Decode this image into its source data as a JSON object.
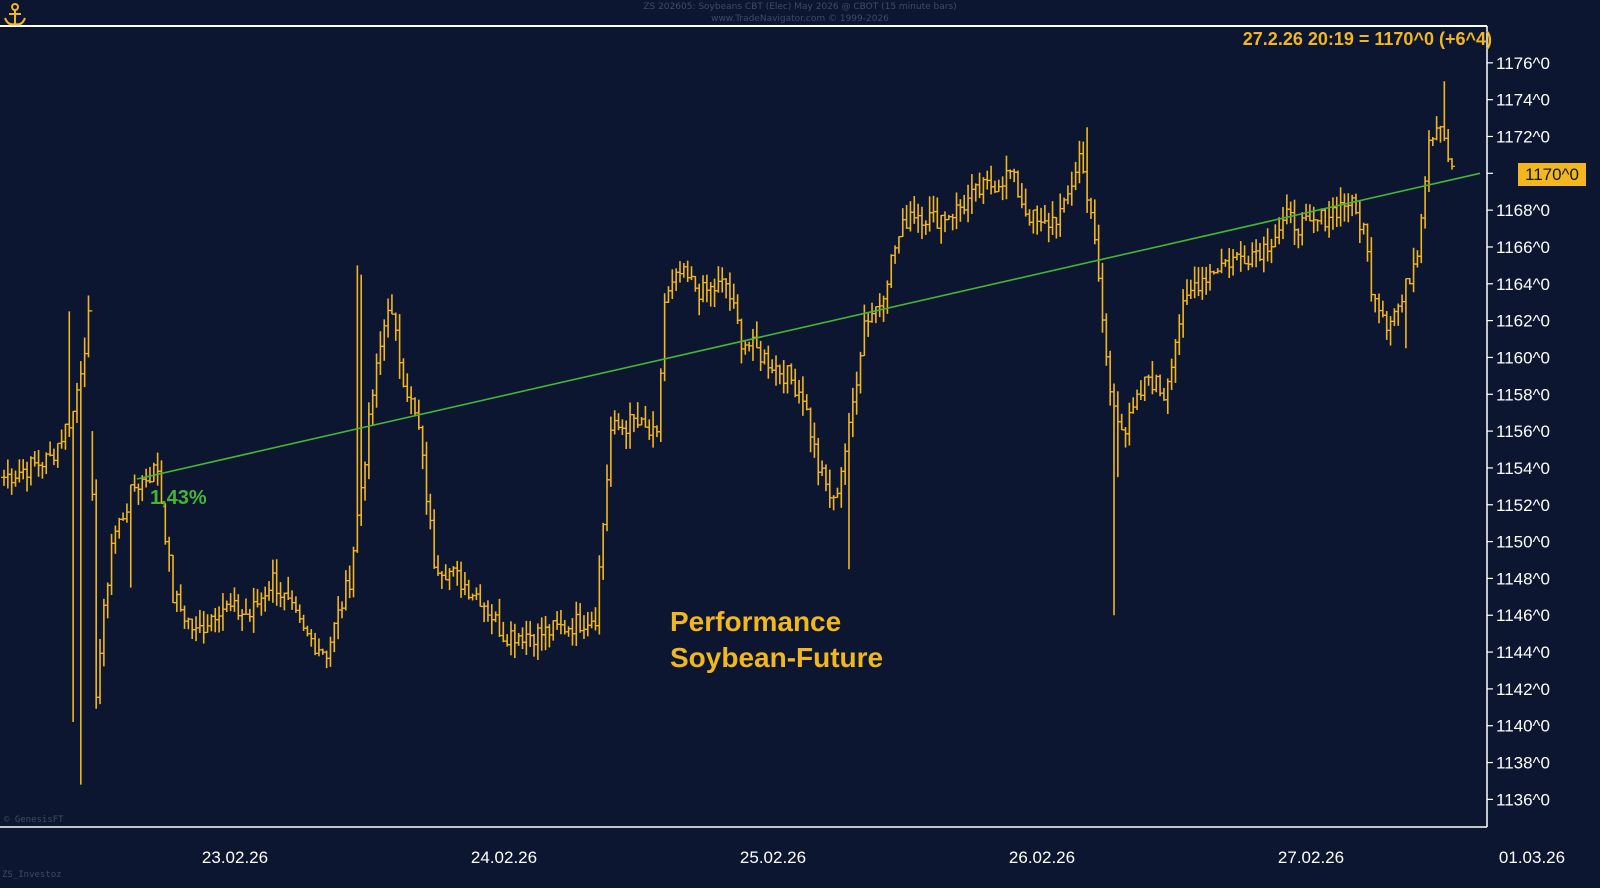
{
  "header": {
    "line1": "ZS 202605:  Soybeans CBT (Elec) May 2026 @ CBOT  (15 minute bars)",
    "line2": "www.TradeNavigator.com © 1999-2026"
  },
  "last_quote": "27.2.26 20:19 = 1170^0 (+6^4)",
  "price_tag": "1170^0",
  "performance_label": "1,43%",
  "annotation": [
    "Performance",
    "Soybean-Future"
  ],
  "footer": {
    "left_inner": "© GenesisFT",
    "left_outer": "ZS_Investoz"
  },
  "colors": {
    "background": "#0d1630",
    "bars": "#f2b71e",
    "trendline": "#45b636",
    "axis_text": "#ffffff",
    "frame": "#ffffff"
  },
  "icons": {
    "logo": "anchor-icon"
  },
  "chart_data": {
    "type": "ohlc",
    "title": "Performance Soybean-Future",
    "interval": "15 minute bars",
    "xlabel": "",
    "ylabel": "",
    "ylim": [
      1134.5,
      1178
    ],
    "y_ticks": [
      1136,
      1138,
      1140,
      1142,
      1144,
      1146,
      1148,
      1150,
      1152,
      1154,
      1156,
      1158,
      1160,
      1162,
      1164,
      1166,
      1168,
      1170,
      1172,
      1174,
      1176
    ],
    "y_tick_labels": [
      "1136^0",
      "1138^0",
      "1140^0",
      "1142^0",
      "1144^0",
      "1146^0",
      "1148^0",
      "1150^0",
      "1152^0",
      "1154^0",
      "1156^0",
      "1158^0",
      "1160^0",
      "1162^0",
      "1164^0",
      "1166^0",
      "1168^0",
      "1170^0",
      "1172^0",
      "1174^0",
      "1176^0"
    ],
    "x_ticks": [
      "23.02.26",
      "24.02.26",
      "25.02.26",
      "26.02.26",
      "27.02.26",
      "01.03.26"
    ],
    "grid": false,
    "legend": "none",
    "anchors": [
      {
        "bar": 0,
        "p": 1153.5
      },
      {
        "bar": 12,
        "p": 1154.5
      },
      {
        "bar": 18,
        "p": 1157
      },
      {
        "bar": 22,
        "p": 1162
      },
      {
        "bar": 24,
        "p": 1142
      },
      {
        "bar": 28,
        "p": 1150
      },
      {
        "bar": 34,
        "p": 1153
      },
      {
        "bar": 40,
        "p": 1154
      },
      {
        "bar": 44,
        "p": 1147
      },
      {
        "bar": 50,
        "p": 1145
      },
      {
        "bar": 56,
        "p": 1146.5
      },
      {
        "bar": 64,
        "p": 1146
      },
      {
        "bar": 70,
        "p": 1148
      },
      {
        "bar": 78,
        "p": 1145
      },
      {
        "bar": 84,
        "p": 1144
      },
      {
        "bar": 90,
        "p": 1148
      },
      {
        "bar": 96,
        "p": 1158
      },
      {
        "bar": 100,
        "p": 1163
      },
      {
        "bar": 104,
        "p": 1159
      },
      {
        "bar": 108,
        "p": 1156
      },
      {
        "bar": 112,
        "p": 1149
      },
      {
        "bar": 118,
        "p": 1148
      },
      {
        "bar": 124,
        "p": 1147
      },
      {
        "bar": 130,
        "p": 1145
      },
      {
        "bar": 140,
        "p": 1145
      },
      {
        "bar": 148,
        "p": 1145.5
      },
      {
        "bar": 154,
        "p": 1146
      },
      {
        "bar": 158,
        "p": 1156
      },
      {
        "bar": 164,
        "p": 1156.5
      },
      {
        "bar": 170,
        "p": 1155.5
      },
      {
        "bar": 172,
        "p": 1163
      },
      {
        "bar": 176,
        "p": 1164.5
      },
      {
        "bar": 182,
        "p": 1163.5
      },
      {
        "bar": 188,
        "p": 1164
      },
      {
        "bar": 192,
        "p": 1161
      },
      {
        "bar": 198,
        "p": 1160
      },
      {
        "bar": 204,
        "p": 1159
      },
      {
        "bar": 208,
        "p": 1158
      },
      {
        "bar": 212,
        "p": 1154
      },
      {
        "bar": 216,
        "p": 1152
      },
      {
        "bar": 220,
        "p": 1156
      },
      {
        "bar": 224,
        "p": 1162
      },
      {
        "bar": 228,
        "p": 1163
      },
      {
        "bar": 232,
        "p": 1166
      },
      {
        "bar": 236,
        "p": 1168
      },
      {
        "bar": 242,
        "p": 1167.5
      },
      {
        "bar": 248,
        "p": 1168
      },
      {
        "bar": 254,
        "p": 1169
      },
      {
        "bar": 258,
        "p": 1169.5
      },
      {
        "bar": 262,
        "p": 1170
      },
      {
        "bar": 266,
        "p": 1168
      },
      {
        "bar": 270,
        "p": 1167
      },
      {
        "bar": 276,
        "p": 1168
      },
      {
        "bar": 280,
        "p": 1171
      },
      {
        "bar": 283,
        "p": 1168
      },
      {
        "bar": 286,
        "p": 1162
      },
      {
        "bar": 288,
        "p": 1158
      },
      {
        "bar": 292,
        "p": 1156
      },
      {
        "bar": 298,
        "p": 1159
      },
      {
        "bar": 302,
        "p": 1158
      },
      {
        "bar": 306,
        "p": 1162
      },
      {
        "bar": 310,
        "p": 1164
      },
      {
        "bar": 316,
        "p": 1165
      },
      {
        "bar": 322,
        "p": 1165.5
      },
      {
        "bar": 328,
        "p": 1166
      },
      {
        "bar": 334,
        "p": 1167.5
      },
      {
        "bar": 340,
        "p": 1167
      },
      {
        "bar": 346,
        "p": 1168
      },
      {
        "bar": 350,
        "p": 1168.5
      },
      {
        "bar": 354,
        "p": 1167
      },
      {
        "bar": 356,
        "p": 1164
      },
      {
        "bar": 360,
        "p": 1162
      },
      {
        "bar": 364,
        "p": 1163
      },
      {
        "bar": 368,
        "p": 1166
      },
      {
        "bar": 371,
        "p": 1172
      },
      {
        "bar": 374,
        "p": 1173
      },
      {
        "bar": 377,
        "p": 1170
      }
    ],
    "spikes": [
      {
        "bar": 17,
        "h": 1162.5
      },
      {
        "bar": 18,
        "l": 1140.2
      },
      {
        "bar": 20,
        "l": 1136.8
      },
      {
        "bar": 23,
        "h": 1156
      },
      {
        "bar": 33,
        "l": 1147.5
      },
      {
        "bar": 92,
        "h": 1165
      },
      {
        "bar": 93,
        "h": 1164.5
      },
      {
        "bar": 220,
        "l": 1148.5
      },
      {
        "bar": 282,
        "h": 1172.5
      },
      {
        "bar": 289,
        "l": 1146
      },
      {
        "bar": 290,
        "l": 1153.5
      },
      {
        "bar": 375,
        "h": 1175
      },
      {
        "bar": 365,
        "l": 1160.5
      }
    ],
    "trendline": {
      "from": {
        "date": "22.02.26",
        "price": 1153.4
      },
      "to": {
        "date": "27.02.26 20:19",
        "price": 1170
      },
      "label": "1,43%"
    }
  }
}
